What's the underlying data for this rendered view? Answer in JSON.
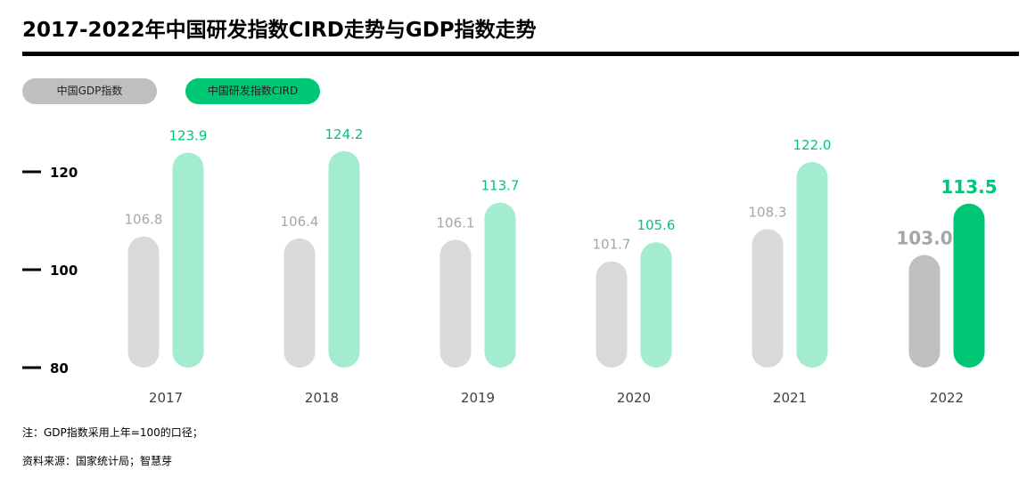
{
  "title": "2017-2022年中国研发指数CIRD走势与GDP指数走势",
  "legend": {
    "gdp_label": "中国GDP指数",
    "cird_label": "中国研发指数CIRD"
  },
  "notes": {
    "note": "注：GDP指数采用上年=100的口径；",
    "source": "资料来源：国家统计局；智慧芽"
  },
  "colors": {
    "gdp_bar": "#d9d9d9",
    "gdp_bar_highlight": "#bfbfbf",
    "cird_bar": "#a3eccf",
    "cird_bar_highlight": "#00c774",
    "gdp_label": "#a6a6a6",
    "cird_label": "#00c774",
    "axis_text": "#000000",
    "tick_text": "#404040"
  },
  "chart_data": {
    "type": "bar",
    "title": "2017-2022年中国研发指数CIRD走势与GDP指数走势",
    "categories": [
      "2017",
      "2018",
      "2019",
      "2020",
      "2021",
      "2022"
    ],
    "series": [
      {
        "name": "中国GDP指数",
        "values": [
          106.8,
          106.4,
          106.1,
          101.7,
          108.3,
          103.0
        ],
        "labels": [
          "106.8",
          "106.4",
          "106.1",
          "101.7",
          "108.3",
          "103.0"
        ]
      },
      {
        "name": "中国研发指数CIRD",
        "values": [
          123.9,
          124.2,
          113.7,
          105.6,
          122.0,
          113.5
        ],
        "labels": [
          "123.9",
          "124.2",
          "113.7",
          "105.6",
          "122.0",
          "113.5"
        ]
      }
    ],
    "highlight_category": "2022",
    "yticks": [
      80,
      100,
      120
    ],
    "ytick_labels": [
      "80",
      "100",
      "120"
    ],
    "ylim": [
      80,
      125
    ],
    "xlabel": "",
    "ylabel": "",
    "grid": false,
    "legend_position": "top-left"
  }
}
